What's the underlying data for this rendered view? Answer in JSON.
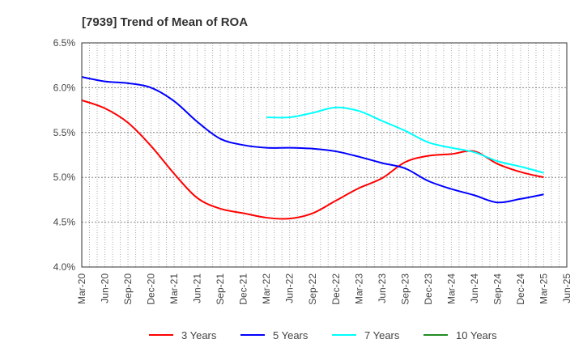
{
  "chart_data": {
    "type": "line",
    "title": "[7939]  Trend of Mean of ROA",
    "xlabel": "",
    "ylabel": "",
    "x": [
      "Mar-20",
      "Jun-20",
      "Sep-20",
      "Dec-20",
      "Mar-21",
      "Jun-21",
      "Sep-21",
      "Dec-21",
      "Mar-22",
      "Jun-22",
      "Sep-22",
      "Dec-22",
      "Mar-23",
      "Jun-23",
      "Sep-23",
      "Dec-23",
      "Mar-24",
      "Jun-24",
      "Sep-24",
      "Dec-24",
      "Mar-25",
      "Jun-25"
    ],
    "ylim": [
      4.0,
      6.5
    ],
    "yticks": [
      4.0,
      4.5,
      5.0,
      5.5,
      6.0,
      6.5
    ],
    "ytick_labels": [
      "4.0%",
      "4.5%",
      "5.0%",
      "5.5%",
      "6.0%",
      "6.5%"
    ],
    "grid": true,
    "legend_position": "bottom",
    "series": [
      {
        "name": "3 Years",
        "color": "#ff0000",
        "values": [
          5.86,
          5.77,
          5.61,
          5.35,
          5.04,
          4.77,
          4.65,
          4.6,
          4.55,
          4.54,
          4.6,
          4.74,
          4.88,
          4.99,
          5.17,
          5.24,
          5.26,
          5.29,
          5.15,
          5.06,
          5.0,
          null
        ]
      },
      {
        "name": "5 Years",
        "color": "#0000ff",
        "values": [
          6.12,
          6.07,
          6.05,
          6.0,
          5.85,
          5.62,
          5.43,
          5.36,
          5.33,
          5.33,
          5.32,
          5.29,
          5.23,
          5.16,
          5.1,
          4.96,
          4.87,
          4.8,
          4.72,
          4.76,
          4.81,
          null
        ]
      },
      {
        "name": "7 Years",
        "color": "#00ffff",
        "values": [
          null,
          null,
          null,
          null,
          null,
          null,
          null,
          null,
          5.67,
          5.67,
          5.72,
          5.78,
          5.74,
          5.63,
          5.52,
          5.39,
          5.33,
          5.28,
          5.18,
          5.12,
          5.05,
          null
        ]
      },
      {
        "name": "10 Years",
        "color": "#228b22",
        "values": [
          null,
          null,
          null,
          null,
          null,
          null,
          null,
          null,
          null,
          null,
          null,
          null,
          null,
          null,
          null,
          null,
          null,
          null,
          null,
          null,
          null,
          null
        ]
      }
    ]
  }
}
